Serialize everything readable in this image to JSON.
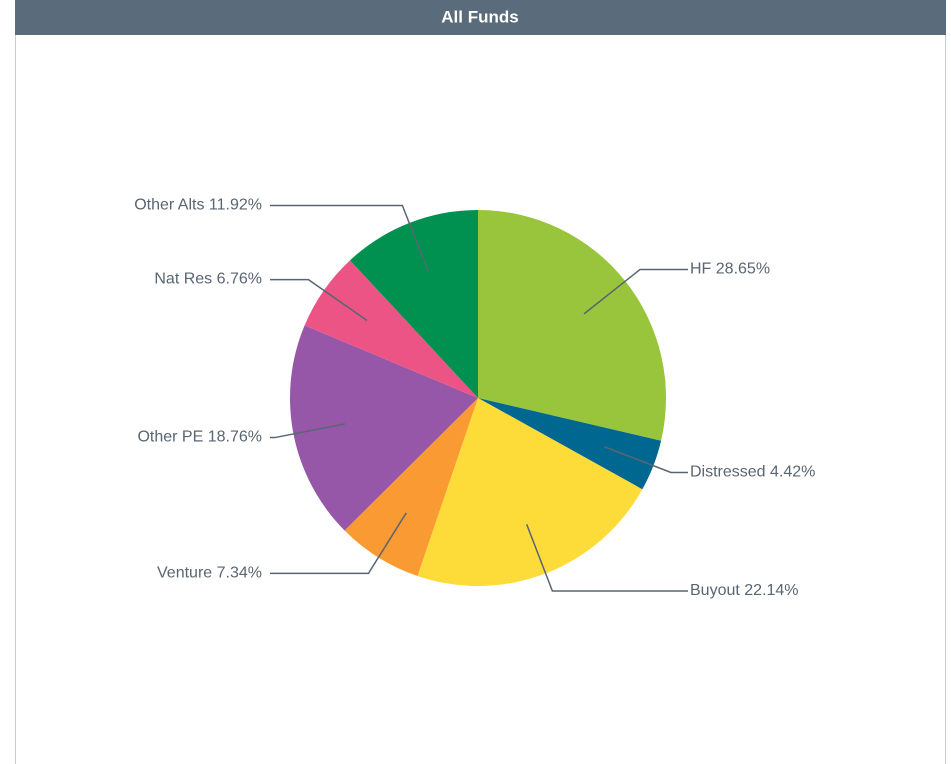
{
  "chart_data": {
    "type": "pie",
    "title": "All Funds",
    "categories": [
      "HF",
      "Distressed",
      "Buyout",
      "Venture",
      "Other PE",
      "Nat Res",
      "Other Alts"
    ],
    "values": [
      28.65,
      4.42,
      22.14,
      7.34,
      18.76,
      6.76,
      11.92
    ],
    "value_labels": [
      "28.65%",
      "4.42%",
      "22.14%",
      "7.34%",
      "18.76%",
      "6.76%",
      "11.92%"
    ],
    "colors": [
      "#98c53c",
      "#006890",
      "#fddc3a",
      "#f99b32",
      "#9657a8",
      "#ec5486",
      "#009150"
    ]
  }
}
